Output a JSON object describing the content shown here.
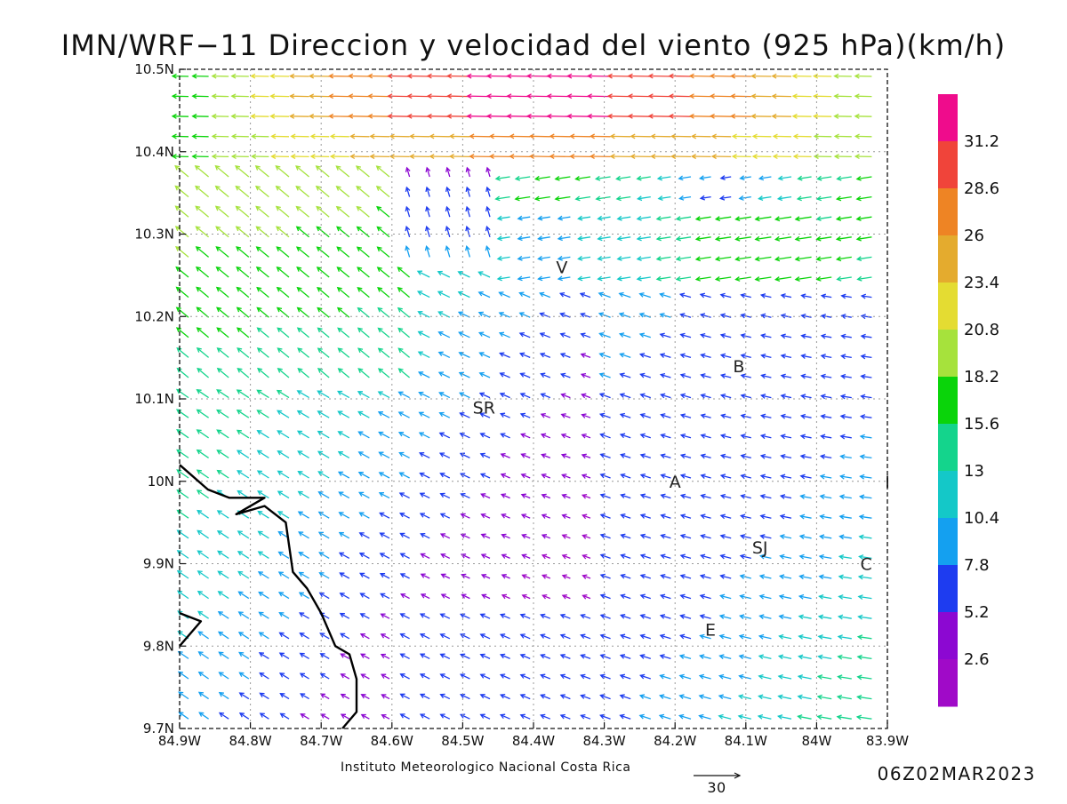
{
  "title": "IMN/WRF−11 Direccion y velocidad del viento (925 hPa)(km/h)",
  "footer": "Instituto Meteorologico Nacional Costa Rica",
  "timestamp": "06Z02MAR2023",
  "reference_vector": {
    "label": "30",
    "speed_kmh": 30
  },
  "axes": {
    "lon_ticks": [
      "84.9W",
      "84.8W",
      "84.7W",
      "84.6W",
      "84.5W",
      "84.4W",
      "84.3W",
      "84.2W",
      "84.1W",
      "84W",
      "83.9W"
    ],
    "lat_ticks": [
      "10.5N",
      "10.4N",
      "10.3N",
      "10.2N",
      "10.1N",
      "10N",
      "9.9N",
      "9.8N",
      "9.7N"
    ],
    "lon_range_deg": [
      -84.9,
      -83.9
    ],
    "lat_range_deg": [
      9.7,
      10.5
    ],
    "grid": "dotted"
  },
  "colorbar": {
    "labels": [
      "31.2",
      "28.6",
      "26",
      "23.4",
      "20.8",
      "18.2",
      "15.6",
      "13",
      "10.4",
      "7.8",
      "5.2",
      "2.6"
    ],
    "colors_top_to_bottom": [
      "#ef0c8c",
      "#f0443a",
      "#ee8424",
      "#e4ab2e",
      "#e4dc32",
      "#a6e23c",
      "#0ad40a",
      "#14d48c",
      "#14c8c8",
      "#14a0f0",
      "#1e3cf0",
      "#8c08d2",
      "#a00ac8"
    ]
  },
  "cities": [
    {
      "label": "V",
      "lon": -84.36,
      "lat": 10.26
    },
    {
      "label": "B",
      "lon": -84.11,
      "lat": 10.14
    },
    {
      "label": "SR",
      "lon": -84.47,
      "lat": 10.09
    },
    {
      "label": "A",
      "lon": -84.2,
      "lat": 10.0
    },
    {
      "label": "I",
      "lon": -83.9,
      "lat": 10.0
    },
    {
      "label": "SJ",
      "lon": -84.08,
      "lat": 9.92
    },
    {
      "label": "C",
      "lon": -83.93,
      "lat": 9.9
    },
    {
      "label": "E",
      "lon": -84.15,
      "lat": 9.82
    }
  ],
  "coastline_lonlat": [
    [
      -84.9,
      10.02
    ],
    [
      -84.86,
      9.99
    ],
    [
      -84.83,
      9.98
    ],
    [
      -84.78,
      9.98
    ],
    [
      -84.82,
      9.96
    ],
    [
      -84.78,
      9.97
    ],
    [
      -84.75,
      9.95
    ],
    [
      -84.74,
      9.89
    ],
    [
      -84.72,
      9.87
    ],
    [
      -84.7,
      9.84
    ],
    [
      -84.68,
      9.8
    ],
    [
      -84.66,
      9.79
    ],
    [
      -84.65,
      9.76
    ],
    [
      -84.65,
      9.72
    ],
    [
      -84.67,
      9.7
    ]
  ],
  "coastline2_lonlat": [
    [
      -84.9,
      9.84
    ],
    [
      -84.87,
      9.83
    ],
    [
      -84.9,
      9.8
    ]
  ]
}
